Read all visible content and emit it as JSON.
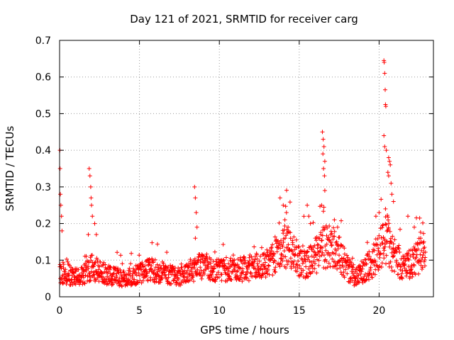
{
  "chart_data": {
    "type": "scatter",
    "title": "Day 121 of 2021, SRMTID for receiver carg",
    "xlabel": "GPS time / hours",
    "ylabel": "SRMTID / TECUs",
    "xlim": [
      0,
      23.4
    ],
    "ylim": [
      0,
      0.7
    ],
    "x_ticks": [
      "0",
      "5",
      "10",
      "15",
      "20"
    ],
    "x_tick_values": [
      0,
      5,
      10,
      15,
      20
    ],
    "y_ticks": [
      "0",
      "0.1",
      "0.2",
      "0.3",
      "0.4",
      "0.5",
      "0.6",
      "0.7"
    ],
    "y_tick_values": [
      0,
      0.1,
      0.2,
      0.3,
      0.4,
      0.5,
      0.6,
      0.7
    ],
    "grid": true,
    "marker": "+",
    "color": "#ff0000",
    "x_range_of_data": [
      0,
      22.9
    ],
    "baseline_profile": [
      [
        0.0,
        0.07
      ],
      [
        0.5,
        0.06
      ],
      [
        1.0,
        0.055
      ],
      [
        1.5,
        0.06
      ],
      [
        2.0,
        0.08
      ],
      [
        2.5,
        0.07
      ],
      [
        3.0,
        0.06
      ],
      [
        3.5,
        0.055
      ],
      [
        4.0,
        0.05
      ],
      [
        4.5,
        0.055
      ],
      [
        5.0,
        0.065
      ],
      [
        5.5,
        0.075
      ],
      [
        6.0,
        0.07
      ],
      [
        6.5,
        0.065
      ],
      [
        7.0,
        0.06
      ],
      [
        7.5,
        0.055
      ],
      [
        8.0,
        0.065
      ],
      [
        8.5,
        0.08
      ],
      [
        9.0,
        0.085
      ],
      [
        9.5,
        0.075
      ],
      [
        10.0,
        0.07
      ],
      [
        10.5,
        0.075
      ],
      [
        11.0,
        0.08
      ],
      [
        11.5,
        0.075
      ],
      [
        12.0,
        0.08
      ],
      [
        12.5,
        0.085
      ],
      [
        13.0,
        0.09
      ],
      [
        13.5,
        0.11
      ],
      [
        14.0,
        0.14
      ],
      [
        14.5,
        0.12
      ],
      [
        15.0,
        0.1
      ],
      [
        15.5,
        0.09
      ],
      [
        16.0,
        0.11
      ],
      [
        16.5,
        0.13
      ],
      [
        17.0,
        0.14
      ],
      [
        17.5,
        0.12
      ],
      [
        18.0,
        0.08
      ],
      [
        18.5,
        0.05
      ],
      [
        19.0,
        0.07
      ],
      [
        19.5,
        0.09
      ],
      [
        20.0,
        0.13
      ],
      [
        20.5,
        0.16
      ],
      [
        21.0,
        0.11
      ],
      [
        21.5,
        0.08
      ],
      [
        22.0,
        0.09
      ],
      [
        22.5,
        0.11
      ],
      [
        22.9,
        0.13
      ]
    ],
    "spike_points": [
      [
        0.02,
        0.4
      ],
      [
        0.03,
        0.35
      ],
      [
        0.05,
        0.28
      ],
      [
        0.08,
        0.25
      ],
      [
        0.12,
        0.22
      ],
      [
        0.15,
        0.18
      ],
      [
        1.85,
        0.35
      ],
      [
        1.9,
        0.33
      ],
      [
        1.95,
        0.3
      ],
      [
        1.97,
        0.27
      ],
      [
        2.0,
        0.25
      ],
      [
        2.05,
        0.22
      ],
      [
        2.2,
        0.2
      ],
      [
        2.3,
        0.17
      ],
      [
        1.8,
        0.17
      ],
      [
        8.45,
        0.3
      ],
      [
        8.5,
        0.27
      ],
      [
        8.55,
        0.23
      ],
      [
        8.6,
        0.19
      ],
      [
        8.5,
        0.16
      ],
      [
        13.8,
        0.27
      ],
      [
        14.0,
        0.25
      ],
      [
        14.2,
        0.23
      ],
      [
        14.1,
        0.21
      ],
      [
        14.3,
        0.19
      ],
      [
        15.5,
        0.25
      ],
      [
        15.6,
        0.22
      ],
      [
        15.7,
        0.2
      ],
      [
        16.45,
        0.45
      ],
      [
        16.5,
        0.43
      ],
      [
        16.55,
        0.41
      ],
      [
        16.48,
        0.39
      ],
      [
        16.6,
        0.37
      ],
      [
        16.52,
        0.35
      ],
      [
        16.58,
        0.33
      ],
      [
        16.6,
        0.29
      ],
      [
        16.4,
        0.25
      ],
      [
        17.2,
        0.21
      ],
      [
        17.4,
        0.19
      ],
      [
        20.3,
        0.645
      ],
      [
        20.32,
        0.64
      ],
      [
        20.35,
        0.61
      ],
      [
        20.38,
        0.565
      ],
      [
        20.4,
        0.525
      ],
      [
        20.42,
        0.52
      ],
      [
        20.3,
        0.44
      ],
      [
        20.35,
        0.41
      ],
      [
        20.45,
        0.4
      ],
      [
        20.6,
        0.38
      ],
      [
        20.65,
        0.37
      ],
      [
        20.7,
        0.36
      ],
      [
        20.55,
        0.34
      ],
      [
        20.6,
        0.33
      ],
      [
        20.75,
        0.31
      ],
      [
        20.8,
        0.28
      ],
      [
        20.9,
        0.26
      ],
      [
        20.4,
        0.24
      ],
      [
        20.0,
        0.23
      ],
      [
        19.8,
        0.22
      ],
      [
        21.8,
        0.22
      ],
      [
        22.2,
        0.19
      ],
      [
        22.6,
        0.16
      ],
      [
        22.8,
        0.15
      ]
    ]
  }
}
